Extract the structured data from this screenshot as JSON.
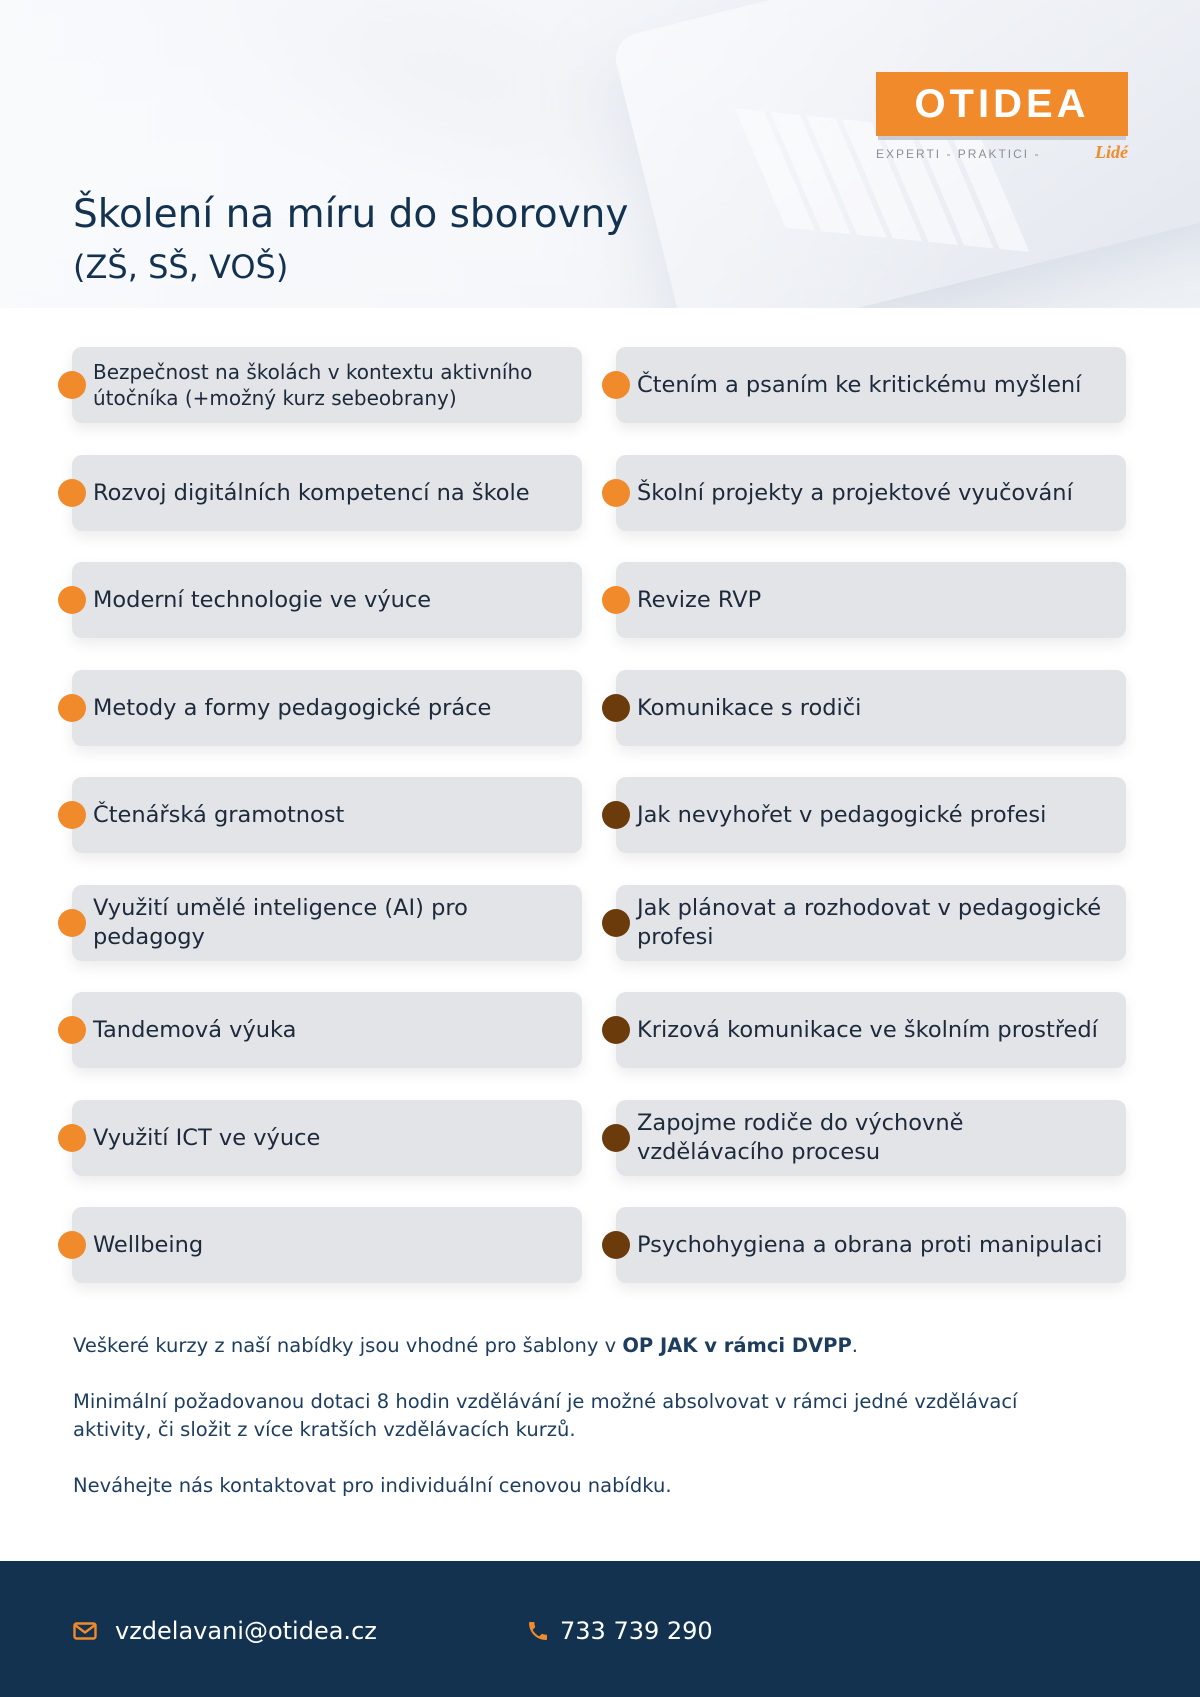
{
  "header": {
    "title": "Školení na míru do sborovny",
    "subtitle": "(ZŠ, SŠ, VOŠ)"
  },
  "logo": {
    "name": "OTIDEA",
    "tagline": "EXPERTI - PRAKTICI -",
    "tagline_accent": "Lidé"
  },
  "courses": {
    "left": [
      {
        "label": "Bezpečnost na školách v kontextu aktivního útočníka (+možný kurz sebeobrany)",
        "dot": "orange"
      },
      {
        "label": "Rozvoj digitálních kompetencí na škole",
        "dot": "orange"
      },
      {
        "label": "Moderní technologie ve výuce",
        "dot": "orange"
      },
      {
        "label": "Metody a formy pedagogické práce",
        "dot": "orange"
      },
      {
        "label": "Čtenářská gramotnost",
        "dot": "orange"
      },
      {
        "label": "Využití umělé inteligence (AI) pro pedagogy",
        "dot": "orange"
      },
      {
        "label": "Tandemová výuka",
        "dot": "orange"
      },
      {
        "label": "Využití ICT ve výuce",
        "dot": "orange"
      },
      {
        "label": "Wellbeing",
        "dot": "orange"
      }
    ],
    "right": [
      {
        "label": "Čtením a psaním ke kritickému myšlení",
        "dot": "orange"
      },
      {
        "label": "Školní projekty a projektové vyučování",
        "dot": "orange"
      },
      {
        "label": "Revize RVP",
        "dot": "orange"
      },
      {
        "label": "Komunikace s rodiči",
        "dot": "brown"
      },
      {
        "label": "Jak nevyhořet v pedagogické profesi",
        "dot": "brown"
      },
      {
        "label": "Jak plánovat a rozhodovat v pedagogické profesi",
        "dot": "brown"
      },
      {
        "label": "Krizová komunikace ve školním prostředí",
        "dot": "brown"
      },
      {
        "label": "Zapojme rodiče do výchovně vzdělávacího procesu",
        "dot": "brown"
      },
      {
        "label": "Psychohygiena a obrana proti manipulaci",
        "dot": "brown"
      }
    ]
  },
  "colors": {
    "orange": "#f18a2b",
    "brown": "#6b3b0c",
    "navy": "#12324f",
    "card": "#e3e4e7"
  },
  "info": {
    "p1_prefix": "Veškeré kurzy z naší nabídky jsou vhodné pro šablony v ",
    "p1_bold": "OP JAK v rámci DVPP",
    "p1_suffix": ".",
    "p2": "Minimální požadovanou dotaci 8 hodin vzdělávání je možné absolvovat v rámci jedné vzdělávací aktivity, či složit z více kratších vzdělávacích kurzů.",
    "p3": "Neváhejte nás kontaktovat pro individuální cenovou nabídku."
  },
  "footer": {
    "email": "vzdelavani@otidea.cz",
    "phone": "733 739 290",
    "email_icon": "envelope-icon",
    "phone_icon": "phone-icon"
  }
}
